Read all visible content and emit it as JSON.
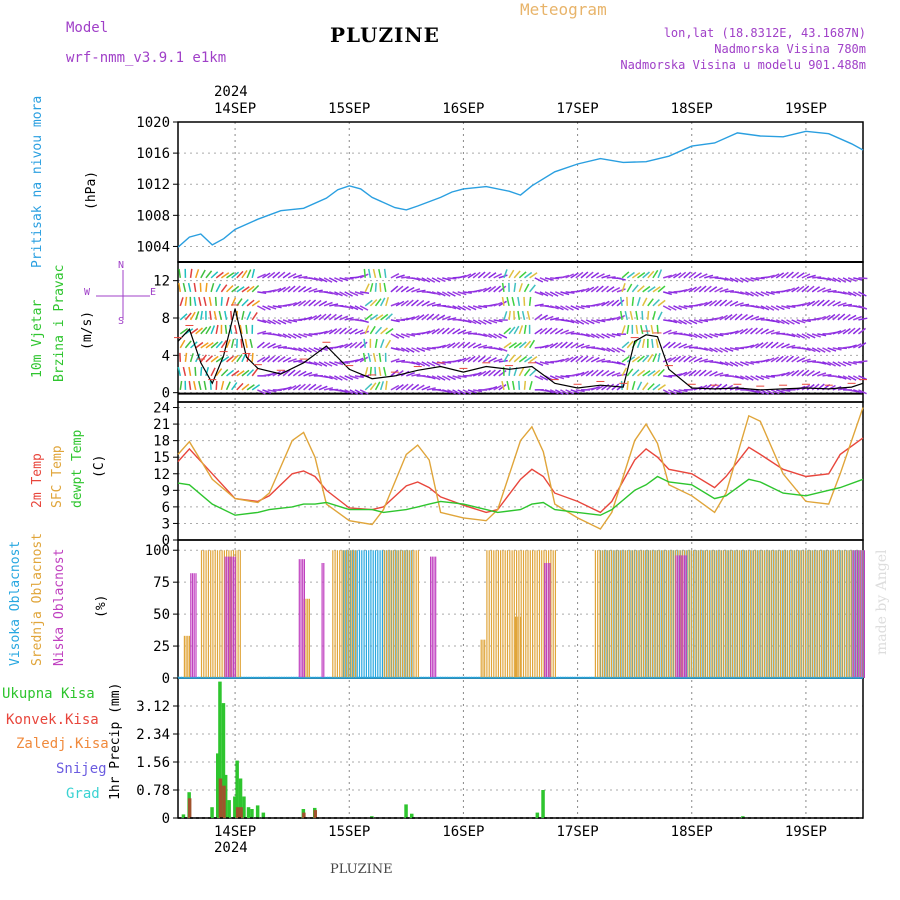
{
  "header": {
    "model_label": "Model",
    "model_name": "wrf-nmm_v3.9.1  e1km",
    "station": "PLUZINE",
    "product": "Meteogram",
    "coords": "lon,lat (18.8312E, 43.1687N)",
    "elevation": "Nadmorska Visina 780m",
    "model_elevation": "Nadmorska Visina u modelu 901.488m",
    "footer_station": "PLUZINE",
    "watermark": "made by Angel"
  },
  "colors": {
    "pressure": "#2a9fe0",
    "temp": "#e8463c",
    "sfc_temp": "#e0a53a",
    "dewpt": "#2ec52e",
    "high_cloud": "#27a7e0",
    "mid_cloud": "#e0a53a",
    "low_cloud": "#c040c0",
    "precip": "#2ec52e",
    "conv_precip": "#e8463c",
    "frozen": "#f08a3c",
    "snow": "#6b5ce0",
    "hail": "#3ad2d2",
    "wind_purple": "#8a2be2",
    "title_purple": "#a040c8",
    "product_orange": "#e8b46a"
  },
  "time_axis": {
    "year": "2024",
    "day_labels": [
      "14SEP",
      "15SEP",
      "16SEP",
      "17SEP",
      "18SEP",
      "19SEP"
    ],
    "start_day": 13.5,
    "end_day": 19.5
  },
  "panels": {
    "pressure": {
      "label_main": "Pritisak na nivou mora",
      "unit": "(hPa)",
      "yticks": [
        "1004",
        "1008",
        "1012",
        "1016",
        "1020"
      ]
    },
    "wind": {
      "label_1": "10m Vjetar",
      "label_2": "Brzina i Pravac",
      "unit": "(m/s)",
      "yticks": [
        "0",
        "4",
        "8",
        "12"
      ],
      "compass": {
        "n": "N",
        "s": "S",
        "e": "E",
        "w": "W"
      }
    },
    "temp": {
      "label_1": "2m Temp",
      "label_2": "SFC Temp",
      "label_3": "dewpt Temp",
      "unit": "(C)",
      "yticks": [
        "0",
        "3",
        "6",
        "9",
        "12",
        "15",
        "18",
        "21",
        "24"
      ]
    },
    "cloud": {
      "label_1": "Visoka Oblacnost",
      "label_2": "Srednja Oblacnost",
      "label_3": "Niska  Oblacnost",
      "unit": "(%)",
      "yticks": [
        "0",
        "25",
        "50",
        "75",
        "100"
      ]
    },
    "precip": {
      "legend": [
        "Ukupna  Kisa",
        "Konvek.Kisa",
        "Zaledj.Kisa",
        "Snijeg",
        "Grad"
      ],
      "unit": "1hr Precip (mm)",
      "yticks": [
        "0",
        "0.78",
        "1.56",
        "2.34",
        "3.12"
      ]
    }
  },
  "chart_data": [
    {
      "type": "line",
      "title": "Pritisak na nivou mora",
      "ylabel": "(hPa)",
      "ylim": [
        1002,
        1020
      ],
      "x_days": [
        13.5,
        13.6,
        13.7,
        13.8,
        13.9,
        14.0,
        14.2,
        14.4,
        14.6,
        14.8,
        14.9,
        15.0,
        15.1,
        15.2,
        15.4,
        15.5,
        15.6,
        15.8,
        15.9,
        16.0,
        16.2,
        16.4,
        16.5,
        16.6,
        16.8,
        17.0,
        17.2,
        17.4,
        17.6,
        17.8,
        18.0,
        18.2,
        18.4,
        18.6,
        18.8,
        19.0,
        19.2,
        19.4,
        19.5
      ],
      "values": [
        1003.9,
        1005.2,
        1005.6,
        1004.2,
        1005.0,
        1006.2,
        1007.5,
        1008.6,
        1008.9,
        1010.2,
        1011.3,
        1011.8,
        1011.4,
        1010.3,
        1009.0,
        1008.7,
        1009.2,
        1010.3,
        1011.0,
        1011.4,
        1011.7,
        1011.1,
        1010.6,
        1011.8,
        1013.6,
        1014.6,
        1015.3,
        1014.8,
        1014.9,
        1015.6,
        1016.9,
        1017.3,
        1018.6,
        1018.2,
        1018.1,
        1018.8,
        1018.5,
        1017.2,
        1016.4
      ],
      "grid": true
    },
    {
      "type": "line",
      "title": "10m Vjetar Brzina i Pravac",
      "ylabel": "(m/s)",
      "ylim": [
        -1,
        14
      ],
      "x_days": [
        13.5,
        13.6,
        13.7,
        13.8,
        13.9,
        14.0,
        14.1,
        14.2,
        14.4,
        14.6,
        14.8,
        15.0,
        15.2,
        15.4,
        15.6,
        15.8,
        16.0,
        16.2,
        16.4,
        16.6,
        16.8,
        17.0,
        17.2,
        17.4,
        17.5,
        17.6,
        17.7,
        17.8,
        18.0,
        18.2,
        18.4,
        18.6,
        18.8,
        19.0,
        19.2,
        19.4,
        19.5
      ],
      "values": [
        5.5,
        6.8,
        3.2,
        1.0,
        4.0,
        9.0,
        3.8,
        2.6,
        2.0,
        3.2,
        5.0,
        2.5,
        1.5,
        1.8,
        2.4,
        2.8,
        2.2,
        2.8,
        2.5,
        2.8,
        1.0,
        0.5,
        0.8,
        0.6,
        5.5,
        6.2,
        6.0,
        2.5,
        0.5,
        0.4,
        0.5,
        0.3,
        0.4,
        0.5,
        0.4,
        0.6,
        1.0
      ],
      "grid": false
    },
    {
      "type": "line",
      "title": "2m Temp / SFC Temp / dewpt Temp",
      "ylabel": "(C)",
      "ylim": [
        0,
        25
      ],
      "x_days": [
        13.5,
        13.6,
        13.8,
        14.0,
        14.2,
        14.3,
        14.5,
        14.6,
        14.7,
        14.8,
        15.0,
        15.2,
        15.3,
        15.5,
        15.6,
        15.7,
        15.8,
        16.0,
        16.2,
        16.3,
        16.5,
        16.6,
        16.7,
        16.8,
        17.0,
        17.2,
        17.3,
        17.5,
        17.6,
        17.7,
        17.8,
        18.0,
        18.2,
        18.3,
        18.5,
        18.6,
        18.8,
        19.0,
        19.2,
        19.3,
        19.5
      ],
      "series": [
        {
          "name": "2m Temp",
          "values": [
            14.2,
            16.5,
            12.0,
            7.5,
            7.0,
            8.0,
            12.0,
            12.5,
            11.5,
            9.0,
            5.8,
            5.5,
            6.0,
            9.8,
            10.5,
            9.5,
            7.8,
            6.3,
            5.0,
            5.5,
            11.0,
            12.8,
            11.5,
            8.5,
            7.0,
            5.0,
            7.0,
            14.5,
            16.5,
            15.0,
            12.8,
            12.0,
            9.5,
            11.5,
            16.8,
            15.5,
            12.8,
            11.5,
            12.0,
            15.5,
            18.5
          ]
        },
        {
          "name": "SFC Temp",
          "values": [
            15.5,
            17.8,
            11.0,
            7.5,
            6.8,
            8.5,
            18.0,
            19.5,
            15.0,
            6.5,
            3.5,
            2.8,
            5.5,
            15.5,
            17.2,
            14.5,
            5.0,
            4.0,
            3.5,
            5.5,
            18.0,
            20.5,
            16.0,
            6.5,
            4.0,
            2.0,
            5.0,
            18.0,
            21.0,
            17.5,
            10.0,
            8.0,
            5.0,
            8.5,
            22.5,
            21.5,
            12.0,
            7.0,
            6.5,
            12.0,
            24.0
          ]
        },
        {
          "name": "dewpt Temp",
          "values": [
            10.3,
            10.0,
            6.5,
            4.5,
            5.0,
            5.5,
            6.0,
            6.5,
            6.5,
            6.8,
            5.5,
            5.5,
            5.0,
            5.5,
            6.0,
            6.5,
            7.0,
            6.5,
            5.5,
            5.0,
            5.5,
            6.5,
            6.8,
            5.5,
            5.0,
            4.5,
            5.5,
            9.0,
            10.0,
            11.5,
            10.5,
            10.0,
            7.5,
            8.0,
            11.0,
            10.5,
            8.5,
            8.0,
            9.0,
            9.5,
            11.0
          ]
        }
      ],
      "grid": true
    },
    {
      "type": "bar",
      "title": "Visoka / Srednja / Niska Oblacnost",
      "ylabel": "(%)",
      "ylim": [
        0,
        100
      ],
      "note_days": "bars show cloud cover fraction vs time (days)",
      "series": [
        {
          "name": "Visoka Oblacnost",
          "segments": [
            [
              14.95,
              15.55,
              100
            ],
            [
              17.2,
              19.5,
              100
            ],
            [
              13.5,
              14.3,
              1
            ],
            [
              14.3,
              19.5,
              1
            ]
          ]
        },
        {
          "name": "Srednja Oblacnost",
          "segments": [
            [
              13.7,
              14.05,
              100
            ],
            [
              14.6,
              14.65,
              62
            ],
            [
              14.85,
              15.05,
              100
            ],
            [
              15.3,
              15.6,
              100
            ],
            [
              16.2,
              16.8,
              100
            ],
            [
              17.15,
              19.5,
              100
            ],
            [
              13.55,
              13.6,
              33
            ],
            [
              16.15,
              16.18,
              30
            ],
            [
              16.45,
              16.5,
              48
            ]
          ]
        },
        {
          "name": "Niska  Oblacnost",
          "segments": [
            [
              13.6,
              13.65,
              82
            ],
            [
              13.9,
              14.0,
              95
            ],
            [
              14.55,
              14.6,
              93
            ],
            [
              14.75,
              14.78,
              90
            ],
            [
              15.7,
              15.75,
              95
            ],
            [
              16.7,
              16.75,
              90
            ],
            [
              17.85,
              17.95,
              96
            ],
            [
              19.4,
              19.5,
              100
            ]
          ]
        }
      ],
      "grid": true
    },
    {
      "type": "bar",
      "title": "1hr Precip",
      "ylabel": "1hr Precip (mm)",
      "ylim": [
        0,
        3.9
      ],
      "series": [
        {
          "name": "Ukupna  Kisa",
          "x_days": [
            13.55,
            13.6,
            13.8,
            13.85,
            13.87,
            13.9,
            13.92,
            13.95,
            14.0,
            14.02,
            14.05,
            14.08,
            14.12,
            14.15,
            14.2,
            14.25,
            14.6,
            14.7,
            15.2,
            15.5,
            15.55,
            16.65,
            16.7,
            18.45
          ],
          "values": [
            0.1,
            0.72,
            0.3,
            1.8,
            3.8,
            3.2,
            1.2,
            0.5,
            0.6,
            1.6,
            1.1,
            0.6,
            0.3,
            0.25,
            0.35,
            0.15,
            0.25,
            0.28,
            0.05,
            0.38,
            0.12,
            0.15,
            0.78,
            0.05
          ]
        },
        {
          "name": "Konvek.Kisa",
          "x_days": [
            13.6,
            13.87,
            13.9,
            14.02,
            14.05,
            14.6,
            14.7
          ],
          "values": [
            0.55,
            1.1,
            0.9,
            0.3,
            0.3,
            0.15,
            0.22
          ]
        }
      ],
      "grid": true
    }
  ]
}
